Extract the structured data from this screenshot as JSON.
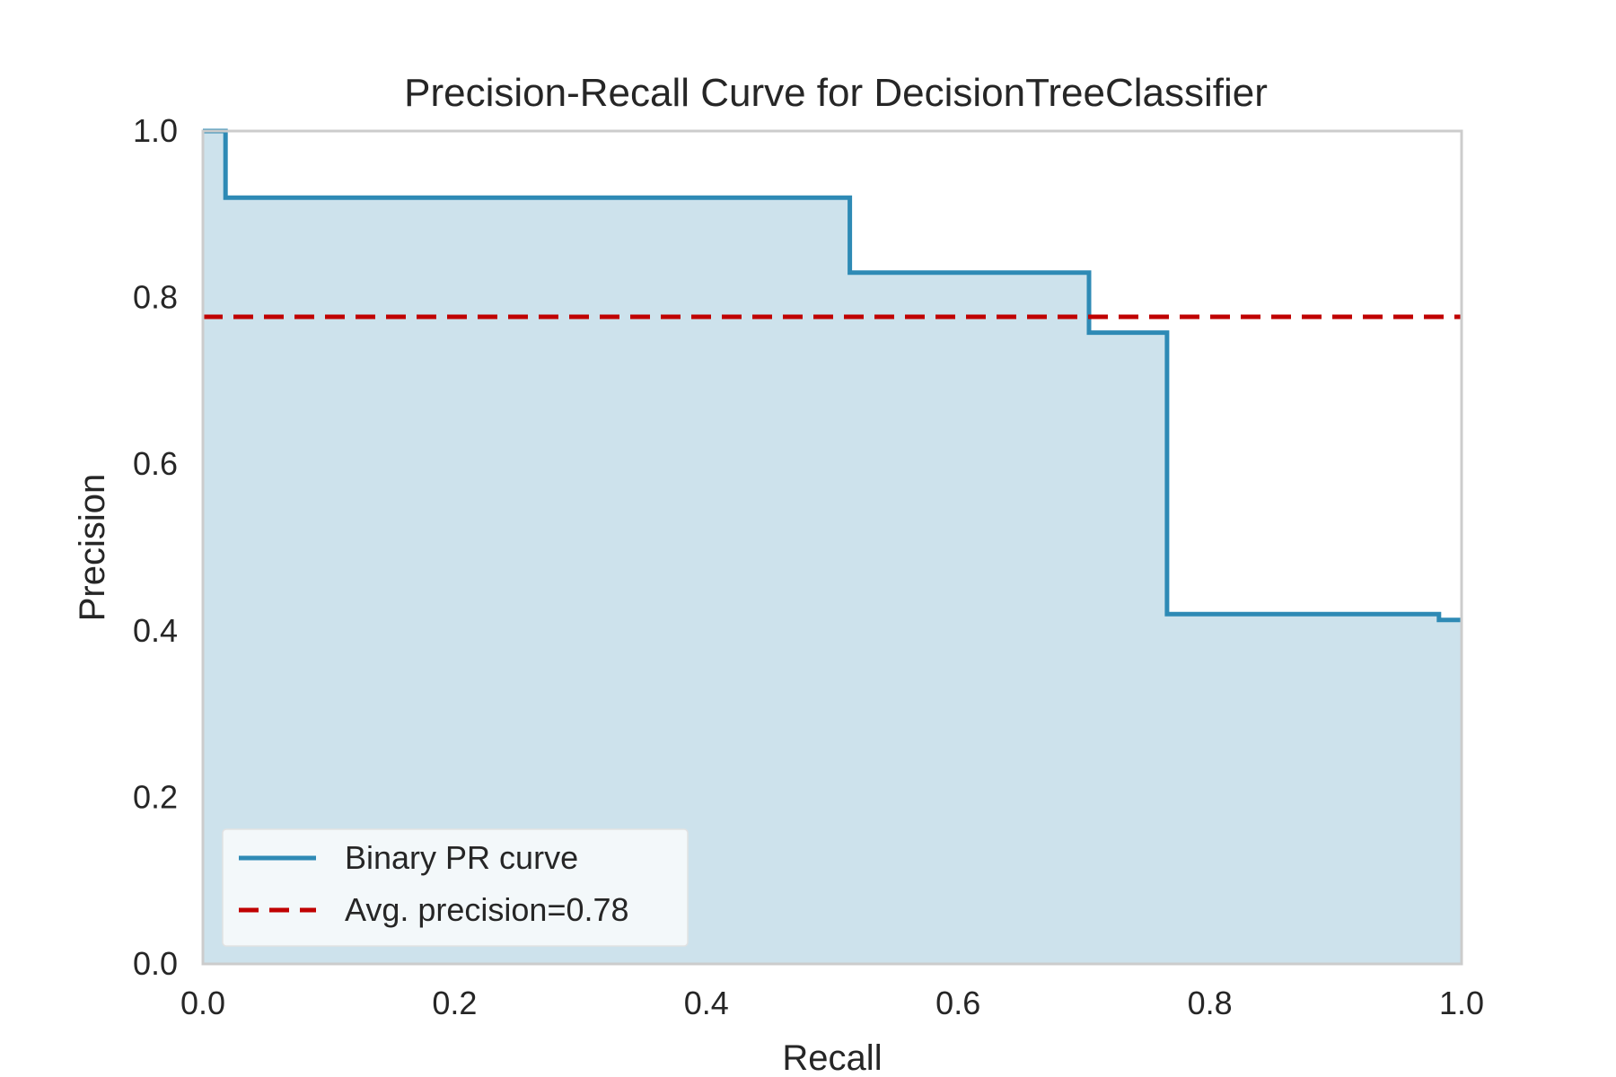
{
  "chart_data": {
    "type": "area",
    "title": "Precision-Recall Curve for DecisionTreeClassifier",
    "xlabel": "Recall",
    "ylabel": "Precision",
    "xlim": [
      0.0,
      1.0
    ],
    "ylim": [
      0.0,
      1.0
    ],
    "xticks": [
      "0.0",
      "0.2",
      "0.4",
      "0.6",
      "0.8",
      "1.0"
    ],
    "yticks": [
      "0.0",
      "0.2",
      "0.4",
      "0.6",
      "0.8",
      "1.0"
    ],
    "grid": false,
    "legend_position": "lower-left",
    "series": [
      {
        "name": "Binary PR curve",
        "style": "step-post",
        "color": "#2e8ab5",
        "fill_color": "#cde2ec",
        "recall": [
          0.0,
          0.018,
          0.018,
          0.514,
          0.514,
          0.704,
          0.704,
          0.766,
          0.766,
          0.982,
          0.982,
          1.0
        ],
        "precision": [
          1.0,
          1.0,
          0.92,
          0.92,
          0.83,
          0.83,
          0.758,
          0.758,
          0.42,
          0.42,
          0.413,
          0.413
        ]
      },
      {
        "name": "Avg. precision=0.78",
        "style": "dashed",
        "color": "#c00000",
        "value": 0.777
      }
    ]
  }
}
